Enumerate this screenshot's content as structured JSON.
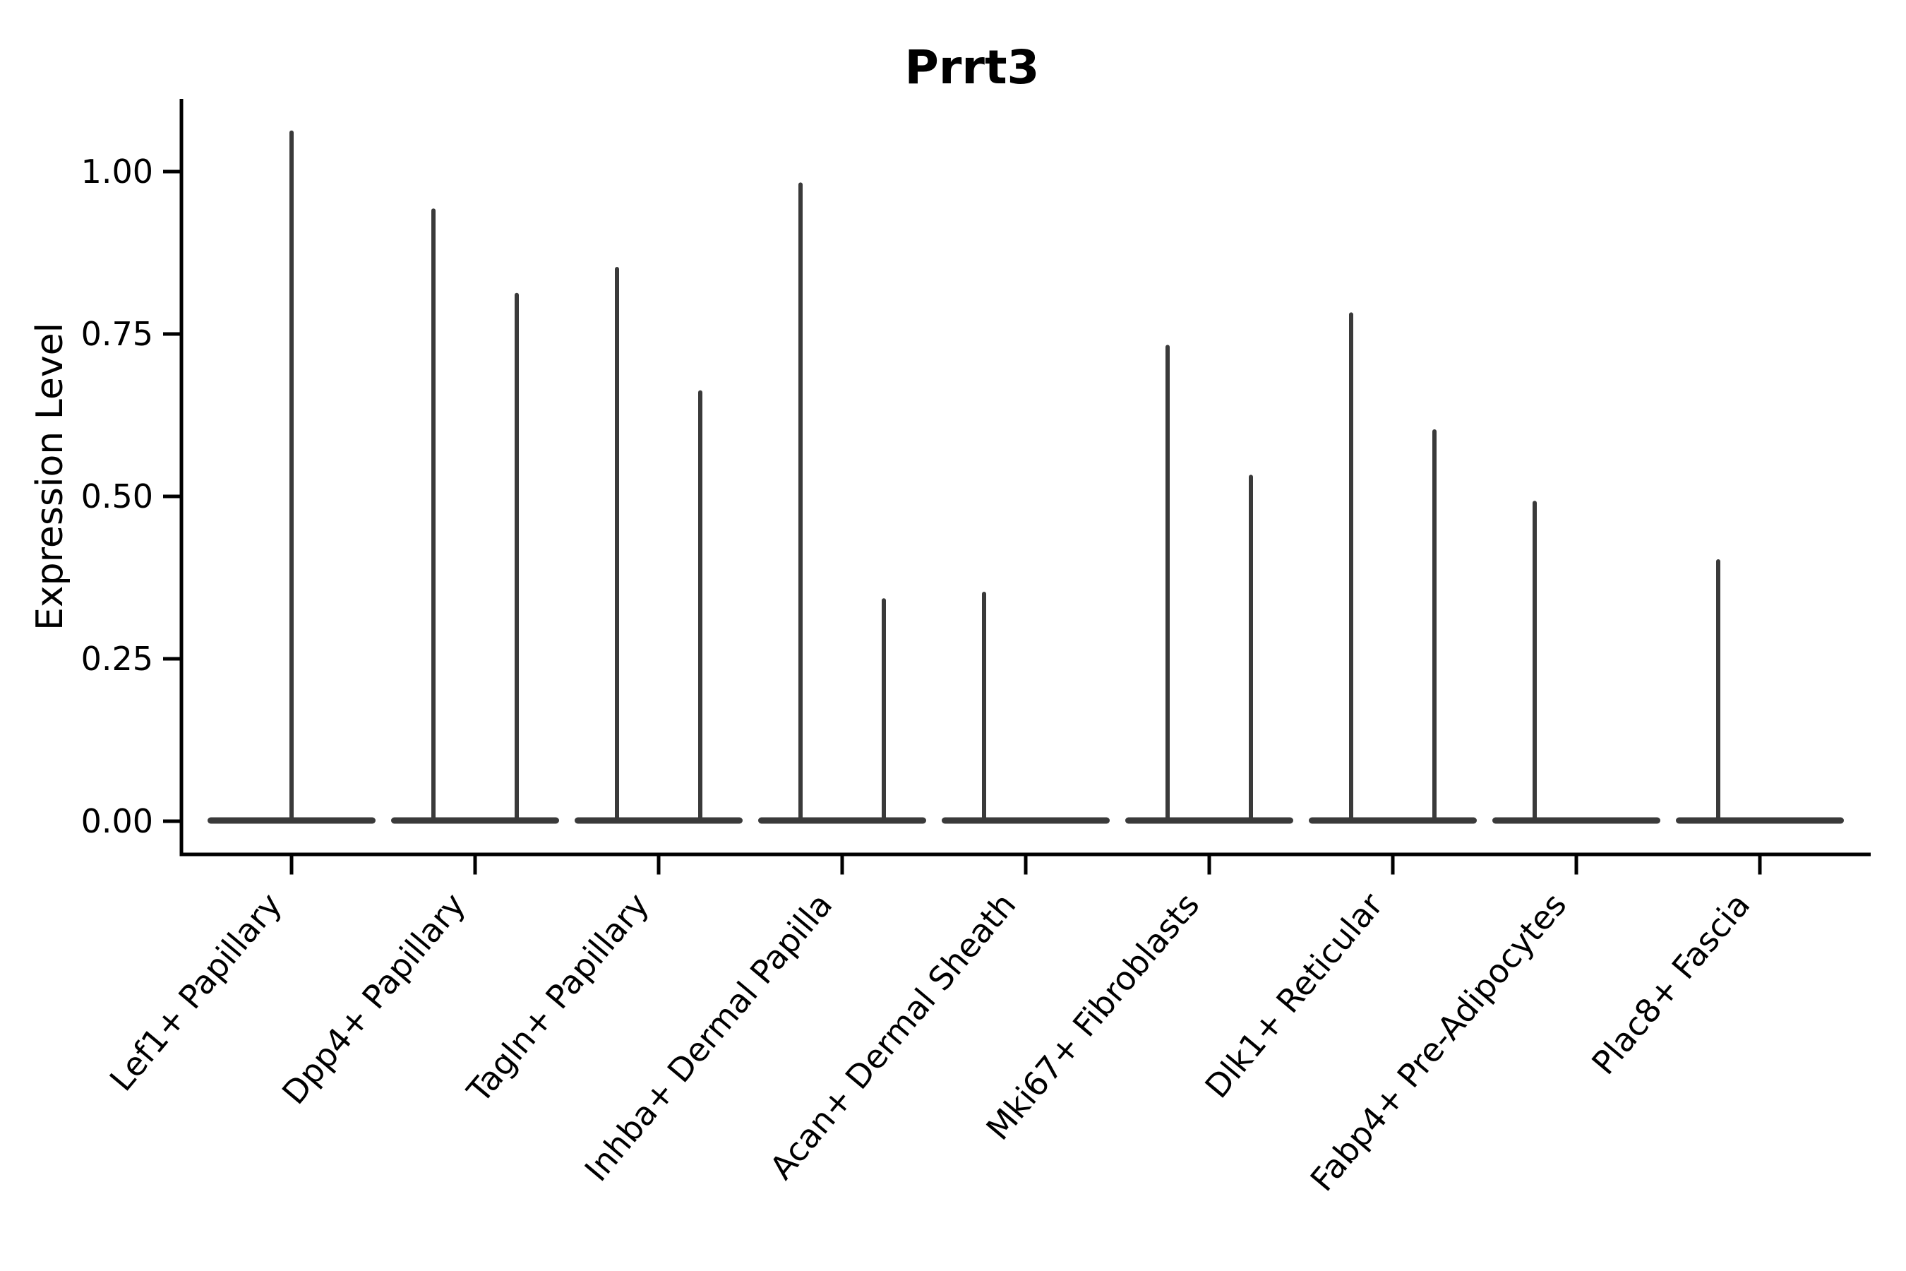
{
  "chart_data": {
    "type": "violin",
    "title": "Prrt3",
    "xlabel": "",
    "ylabel": "Expression Level",
    "ylim": [
      -0.051,
      1.113
    ],
    "ytick_labels": [
      "0.00",
      "0.25",
      "0.50",
      "0.75",
      "1.00"
    ],
    "ytick_values": [
      0.0,
      0.25,
      0.5,
      0.75,
      1.0
    ],
    "grid": false,
    "legend_position": "none",
    "violin_color": "#3a3a3a",
    "axis_color": "#000000",
    "background_color": "#ffffff",
    "x_label_rotation_deg": 50,
    "categories": [
      {
        "label": "Lef1+ Papillary",
        "violins": [
          {
            "pos": "center",
            "max": 1.06
          }
        ]
      },
      {
        "label": "Dpp4+ Papillary",
        "violins": [
          {
            "pos": "left",
            "max": 0.94
          },
          {
            "pos": "right",
            "max": 0.81
          }
        ]
      },
      {
        "label": "Tagln+ Papillary",
        "violins": [
          {
            "pos": "left",
            "max": 0.85
          },
          {
            "pos": "right",
            "max": 0.66
          }
        ]
      },
      {
        "label": "Inhba+ Dermal Papilla",
        "violins": [
          {
            "pos": "left",
            "max": 0.98
          },
          {
            "pos": "right",
            "max": 0.34
          }
        ]
      },
      {
        "label": "Acan+ Dermal Sheath",
        "violins": [
          {
            "pos": "left",
            "max": 0.35
          },
          {
            "pos": "right",
            "max": 0.0
          }
        ]
      },
      {
        "label": "Mki67+ Fibroblasts",
        "violins": [
          {
            "pos": "left",
            "max": 0.73
          },
          {
            "pos": "right",
            "max": 0.53
          }
        ]
      },
      {
        "label": "Dlk1+ Reticular",
        "violins": [
          {
            "pos": "left",
            "max": 0.78
          },
          {
            "pos": "right",
            "max": 0.6
          }
        ]
      },
      {
        "label": "Fabp4+ Pre-Adipocytes",
        "violins": [
          {
            "pos": "left",
            "max": 0.49
          },
          {
            "pos": "right",
            "max": 0.0
          }
        ]
      },
      {
        "label": "Plac8+ Fascia",
        "violins": [
          {
            "pos": "left",
            "max": 0.4
          },
          {
            "pos": "right",
            "max": 0.0
          }
        ]
      }
    ]
  }
}
